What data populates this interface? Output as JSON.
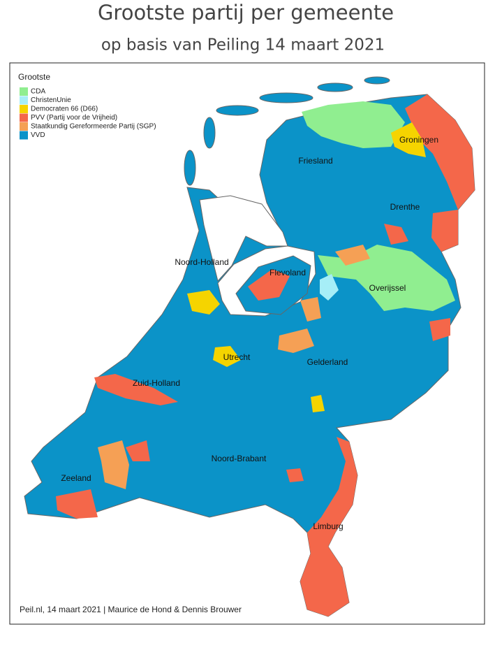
{
  "title": "Grootste partij per gemeente",
  "subtitle": "op basis van Peiling 14 maart 2021",
  "legend": {
    "title": "Grootste",
    "items": [
      {
        "label": "CDA",
        "color": "#90ee90"
      },
      {
        "label": "ChristenUnie",
        "color": "#a6eef7"
      },
      {
        "label": "Democraten 66 (D66)",
        "color": "#f5d400"
      },
      {
        "label": "PVV (Partij voor de Vrijheid)",
        "color": "#f4674a"
      },
      {
        "label": "Staatkundig Gereformeerde Partij (SGP)",
        "color": "#f5a055"
      },
      {
        "label": "VVD",
        "color": "#0b93c8"
      }
    ]
  },
  "regions": [
    {
      "label": "Friesland"
    },
    {
      "label": "Groningen"
    },
    {
      "label": "Drenthe"
    },
    {
      "label": "Noord-Holland"
    },
    {
      "label": "Flevoland"
    },
    {
      "label": "Overijssel"
    },
    {
      "label": "Utrecht"
    },
    {
      "label": "Gelderland"
    },
    {
      "label": "Zuid-Holland"
    },
    {
      "label": "Noord-Brabant"
    },
    {
      "label": "Zeeland"
    },
    {
      "label": "Limburg"
    }
  ],
  "source": "Peil.nl, 14 maart 2021 | Maurice de Hond & Dennis Brouwer"
}
